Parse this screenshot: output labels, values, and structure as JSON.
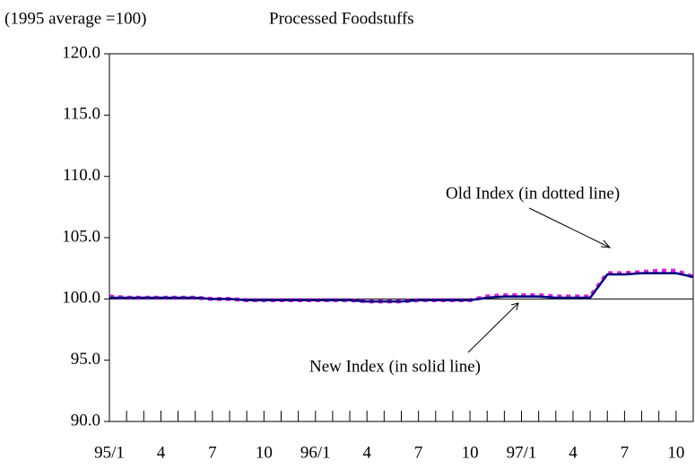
{
  "chart_data": {
    "type": "line",
    "title": "Processed Foodstuffs",
    "subtitle": "(1995 average =100)",
    "categories": [
      "95/1",
      null,
      null,
      "4",
      null,
      null,
      "7",
      null,
      null,
      "10",
      null,
      null,
      "96/1",
      null,
      null,
      "4",
      null,
      null,
      "7",
      null,
      null,
      "10",
      null,
      null,
      "97/1",
      null,
      null,
      "4",
      null,
      null,
      "7",
      null,
      null,
      "10",
      null
    ],
    "series": [
      {
        "name": "New Index (in solid line)",
        "color": "#000080",
        "style": "solid",
        "values": [
          100.1,
          100.1,
          100.1,
          100.1,
          100.1,
          100.1,
          100.0,
          100.0,
          99.9,
          99.9,
          99.9,
          99.9,
          99.9,
          99.9,
          99.9,
          99.8,
          99.8,
          99.8,
          99.9,
          99.9,
          99.9,
          99.9,
          100.1,
          100.2,
          100.2,
          100.2,
          100.1,
          100.1,
          100.1,
          102.0,
          102.0,
          102.1,
          102.1,
          102.1,
          101.8
        ]
      },
      {
        "name": "Old Index (in dotted line)",
        "color": "#e020e0",
        "style": "dotted",
        "values": [
          100.2,
          100.1,
          100.1,
          100.1,
          100.1,
          100.1,
          100.0,
          100.0,
          99.9,
          99.9,
          99.9,
          99.9,
          99.9,
          99.9,
          99.9,
          99.8,
          99.8,
          99.8,
          99.9,
          99.9,
          99.9,
          99.9,
          100.2,
          100.3,
          100.3,
          100.3,
          100.2,
          100.2,
          100.2,
          102.1,
          102.1,
          102.2,
          102.3,
          102.3,
          101.8
        ]
      }
    ],
    "reference_line": 100,
    "ylim": [
      90,
      120
    ],
    "yticks": [
      {
        "value": 90,
        "label": "90.0"
      },
      {
        "value": 95,
        "label": "95.0"
      },
      {
        "value": 100,
        "label": "100.0"
      },
      {
        "value": 105,
        "label": "105.0"
      },
      {
        "value": 110,
        "label": "110.0"
      },
      {
        "value": 115,
        "label": "115.0"
      },
      {
        "value": 120,
        "label": "120.0"
      }
    ],
    "grid": false
  }
}
